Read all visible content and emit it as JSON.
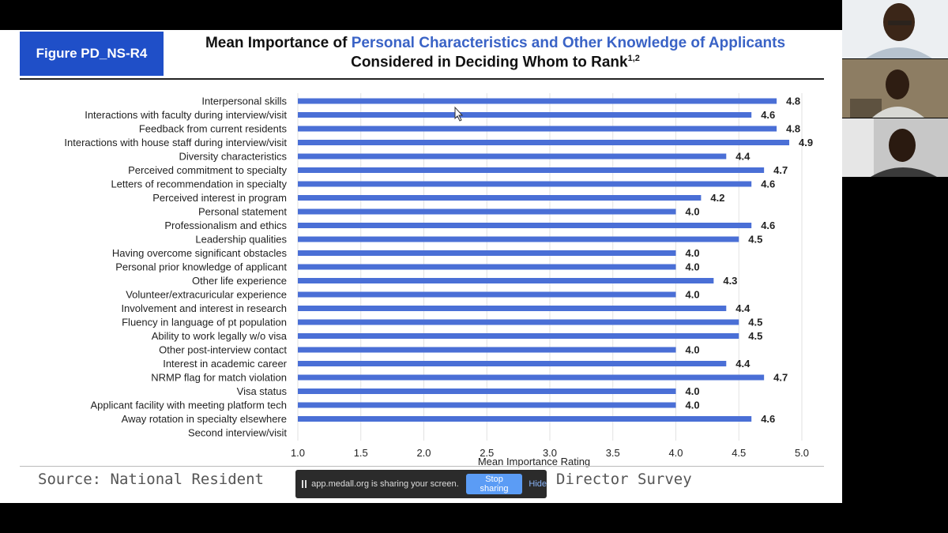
{
  "slide": {
    "figure_label": "Figure PD_NS-R4",
    "title_part1": "Mean Importance of ",
    "title_highlight": "Personal Characteristics and Other Knowledge of Applicants",
    "title_line2": "Considered in Deciding Whom to Rank",
    "title_superscript": "1,2",
    "source_text": "Source: National Resident ",
    "source_text_end": "ogram Director Survey"
  },
  "chart_data": {
    "type": "bar",
    "orientation": "horizontal",
    "xlabel": "Mean Importance Rating",
    "xlim": [
      1.0,
      5.0
    ],
    "xticks": [
      "1.0",
      "1.5",
      "2.0",
      "2.5",
      "3.0",
      "3.5",
      "4.0",
      "4.5",
      "5.0"
    ],
    "grid": true,
    "bar_color": "#4a6fd6",
    "categories": [
      "Interpersonal skills",
      "Interactions with faculty during interview/visit",
      "Feedback from current residents",
      "Interactions with house staff during interview/visit",
      "Diversity characteristics",
      "Perceived commitment to specialty",
      "Letters of recommendation in specialty",
      "Perceived interest in program",
      "Personal statement",
      "Professionalism and ethics",
      "Leadership qualities",
      "Having overcome significant obstacles",
      "Personal prior knowledge of applicant",
      "Other life experience",
      "Volunteer/extracuricular experience",
      "Involvement and interest in research",
      "Fluency in language of pt population",
      "Ability to work legally w/o visa",
      "Other post-interview contact",
      "Interest in academic career",
      "NRMP flag for match violation",
      "Visa status",
      "Applicant facility with meeting platform tech",
      "Away rotation in specialty elsewhere",
      "Second interview/visit"
    ],
    "values": [
      4.8,
      4.6,
      4.8,
      4.9,
      4.4,
      4.7,
      4.6,
      4.2,
      4.0,
      4.6,
      4.5,
      4.0,
      4.0,
      4.3,
      4.0,
      4.4,
      4.5,
      4.5,
      4.0,
      4.4,
      4.7,
      4.0,
      4.0,
      4.6,
      null
    ],
    "value_labels": [
      "4.8",
      "4.6",
      "4.8",
      "4.9",
      "4.4",
      "4.7",
      "4.6",
      "4.2",
      "4.0",
      "4.6",
      "4.5",
      "4.0",
      "4.0",
      "4.3",
      "4.0",
      "4.4",
      "4.5",
      "4.5",
      "4.0",
      "4.4",
      "4.7",
      "4.0",
      "4.0",
      "4.6",
      ""
    ]
  },
  "share_bar": {
    "message": "app.medall.org is sharing your screen.",
    "stop_label": "Stop sharing",
    "hide_label": "Hide"
  },
  "participants": {
    "tile_count": 3
  }
}
